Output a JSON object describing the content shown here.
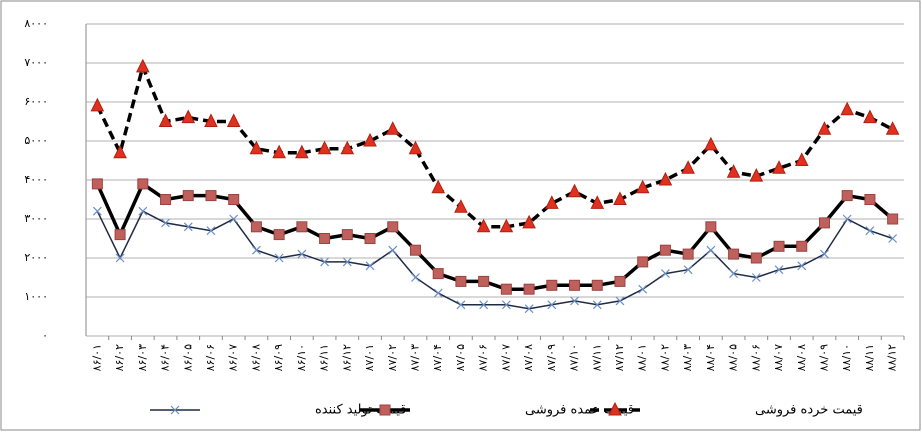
{
  "chart_data": {
    "type": "line",
    "categories": [
      "۸۶/۰۱",
      "۸۶/۰۲",
      "۸۶/۰۳",
      "۸۶/۰۴",
      "۸۶/۰۵",
      "۸۶/۰۶",
      "۸۶/۰۷",
      "۸۶/۰۸",
      "۸۶/۰۹",
      "۸۶/۱۰",
      "۸۶/۱۱",
      "۸۶/۱۲",
      "۸۷/۰۱",
      "۸۷/۰۲",
      "۸۷/۰۳",
      "۸۷/۰۴",
      "۸۷/۰۵",
      "۸۷/۰۶",
      "۸۷/۰۷",
      "۸۷/۰۸",
      "۸۷/۰۹",
      "۸۷/۱۰",
      "۸۷/۱۱",
      "۸۷/۱۲",
      "۸۸/۰۱",
      "۸۸/۰۲",
      "۸۸/۰۳",
      "۸۸/۰۴",
      "۸۸/۰۵",
      "۸۸/۰۶",
      "۸۸/۰۷",
      "۸۸/۰۸",
      "۸۸/۰۹",
      "۸۸/۱۰",
      "۸۸/۱۱",
      "۸۸/۱۲"
    ],
    "series": [
      {
        "name": "قیمت تولید کننده",
        "color": "#1f2a44",
        "marker": "x",
        "values": [
          3200,
          2000,
          3200,
          2900,
          2800,
          2700,
          3000,
          2200,
          2000,
          2100,
          1900,
          1900,
          1800,
          2200,
          1500,
          1100,
          800,
          800,
          800,
          700,
          800,
          900,
          800,
          900,
          1200,
          1600,
          1700,
          2200,
          1600,
          1500,
          1700,
          1800,
          2100,
          3000,
          2700,
          2500
        ]
      },
      {
        "name": "قیمت عمده فروشی",
        "color": "#000000",
        "marker": "square",
        "values": [
          3900,
          2600,
          3900,
          3500,
          3600,
          3600,
          3500,
          2800,
          2600,
          2800,
          2500,
          2600,
          2500,
          2800,
          2200,
          1600,
          1400,
          1400,
          1200,
          1200,
          1300,
          1300,
          1300,
          1400,
          1900,
          2200,
          2100,
          2800,
          2100,
          2000,
          2300,
          2300,
          2900,
          3600,
          3500,
          3000
        ]
      },
      {
        "name": "قیمت خرده فروشی",
        "color": "#000000",
        "marker": "triangle",
        "dashed": true,
        "values": [
          5900,
          4700,
          6900,
          5500,
          5600,
          5500,
          5500,
          4800,
          4700,
          4700,
          4800,
          4800,
          5000,
          5300,
          4800,
          3800,
          3300,
          2800,
          2800,
          2900,
          3400,
          3700,
          3400,
          3500,
          3800,
          4000,
          4300,
          4900,
          4200,
          4100,
          4300,
          4500,
          5300,
          5800,
          5600,
          5300
        ]
      }
    ],
    "ylim": [
      0,
      8000
    ],
    "yticks": [
      {
        "value": 0,
        "label": "۰"
      },
      {
        "value": 1000,
        "label": "۱۰۰۰"
      },
      {
        "value": 2000,
        "label": "۲۰۰۰"
      },
      {
        "value": 3000,
        "label": "۳۰۰۰"
      },
      {
        "value": 4000,
        "label": "۴۰۰۰"
      },
      {
        "value": 5000,
        "label": "۵۰۰۰"
      },
      {
        "value": 6000,
        "label": "۶۰۰۰"
      },
      {
        "value": 7000,
        "label": "۷۰۰۰"
      },
      {
        "value": 8000,
        "label": "۸۰۰۰"
      }
    ],
    "grid": true
  }
}
